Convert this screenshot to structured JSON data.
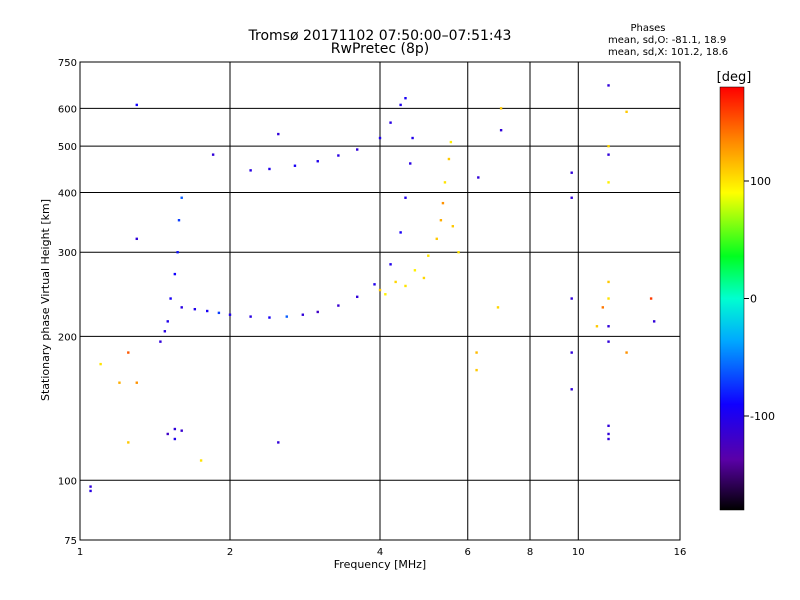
{
  "chart_data": {
    "type": "scatter",
    "title": "Tromsø 20171102 07:50:00–07:51:43",
    "subtitle": "RwPretec (8p)",
    "xlabel": "Frequency [MHz]",
    "ylabel": "Stationary phase Virtual Height [km]",
    "x_scale": "log",
    "y_scale": "log",
    "xlim": [
      1,
      16
    ],
    "ylim": [
      75,
      750
    ],
    "x_ticks": [
      1,
      2,
      4,
      6,
      8,
      10,
      16
    ],
    "y_ticks": [
      75,
      100,
      200,
      300,
      400,
      500,
      600,
      750
    ],
    "grid": true,
    "phase_info": {
      "title": "Phases",
      "o_line": "mean, sd,O: -81.1, 18.9",
      "x_line": "mean, sd,X: 101.2, 18.6"
    },
    "colorbar": {
      "label": "[deg]",
      "range": [
        -180,
        180
      ],
      "ticks": [
        100,
        0,
        -100
      ]
    },
    "series": [
      {
        "mode": "O",
        "mean_phase": -81.1,
        "points": [
          [
            1.05,
            97,
            -110
          ],
          [
            1.05,
            95,
            -105
          ],
          [
            1.5,
            125,
            -120
          ],
          [
            1.55,
            128,
            -110
          ],
          [
            1.55,
            122,
            -100
          ],
          [
            1.6,
            127,
            -115
          ],
          [
            1.45,
            195,
            -110
          ],
          [
            1.48,
            205,
            -105
          ],
          [
            1.5,
            215,
            -100
          ],
          [
            1.52,
            240,
            -95
          ],
          [
            1.55,
            270,
            -90
          ],
          [
            1.57,
            300,
            -85
          ],
          [
            1.58,
            350,
            -70
          ],
          [
            1.6,
            390,
            -60
          ],
          [
            1.6,
            230,
            -105
          ],
          [
            1.7,
            228,
            -100
          ],
          [
            1.8,
            226,
            -95
          ],
          [
            1.9,
            224,
            -70
          ],
          [
            2.0,
            222,
            -100
          ],
          [
            2.2,
            220,
            -105
          ],
          [
            2.4,
            219,
            -95
          ],
          [
            2.6,
            220,
            -60
          ],
          [
            2.8,
            222,
            -110
          ],
          [
            3.0,
            225,
            -120
          ],
          [
            3.3,
            232,
            -115
          ],
          [
            3.6,
            242,
            -110
          ],
          [
            3.9,
            257,
            -100
          ],
          [
            4.2,
            283,
            -100
          ],
          [
            4.4,
            330,
            -95
          ],
          [
            4.5,
            390,
            -100
          ],
          [
            4.6,
            460,
            -105
          ],
          [
            4.65,
            520,
            -100
          ],
          [
            2.2,
            445,
            -105
          ],
          [
            2.4,
            448,
            -100
          ],
          [
            2.7,
            455,
            -95
          ],
          [
            3.0,
            465,
            -100
          ],
          [
            3.3,
            478,
            -105
          ],
          [
            3.6,
            492,
            -110
          ],
          [
            4.0,
            520,
            -100
          ],
          [
            4.2,
            560,
            -105
          ],
          [
            4.4,
            610,
            -100
          ],
          [
            4.5,
            630,
            -95
          ],
          [
            1.3,
            610,
            -90
          ],
          [
            1.85,
            480,
            -110
          ],
          [
            2.5,
            530,
            -110
          ],
          [
            2.5,
            120,
            -110
          ],
          [
            1.3,
            320,
            -110
          ],
          [
            9.7,
            440,
            -110
          ],
          [
            9.7,
            390,
            -110
          ],
          [
            9.7,
            240,
            -110
          ],
          [
            9.7,
            185,
            -110
          ],
          [
            9.7,
            155,
            -110
          ],
          [
            11.5,
            670,
            -110
          ],
          [
            11.5,
            480,
            -110
          ],
          [
            11.5,
            210,
            -110
          ],
          [
            11.5,
            195,
            -110
          ],
          [
            11.5,
            130,
            -110
          ],
          [
            11.5,
            125,
            -110
          ],
          [
            11.5,
            122,
            -110
          ],
          [
            14.2,
            215,
            -110
          ],
          [
            6.3,
            430,
            -110
          ],
          [
            7.0,
            540,
            -110
          ]
        ]
      },
      {
        "mode": "X",
        "mean_phase": 101.2,
        "points": [
          [
            4.0,
            250,
            110
          ],
          [
            4.3,
            260,
            105
          ],
          [
            4.7,
            275,
            95
          ],
          [
            5.0,
            295,
            100
          ],
          [
            5.2,
            320,
            110
          ],
          [
            5.3,
            350,
            120
          ],
          [
            5.35,
            380,
            130
          ],
          [
            5.4,
            420,
            100
          ],
          [
            5.5,
            470,
            110
          ],
          [
            5.55,
            510,
            95
          ],
          [
            5.6,
            340,
            110
          ],
          [
            5.75,
            300,
            100
          ],
          [
            4.1,
            245,
            95
          ],
          [
            4.5,
            255,
            100
          ],
          [
            4.9,
            265,
            105
          ],
          [
            1.2,
            160,
            120
          ],
          [
            1.3,
            160,
            130
          ],
          [
            1.25,
            185,
            150
          ],
          [
            1.75,
            110,
            100
          ],
          [
            6.25,
            185,
            115
          ],
          [
            6.25,
            170,
            110
          ],
          [
            6.9,
            230,
            105
          ],
          [
            7.0,
            600,
            110
          ],
          [
            11.5,
            500,
            105
          ],
          [
            11.5,
            420,
            95
          ],
          [
            11.5,
            260,
            110
          ],
          [
            11.5,
            240,
            100
          ],
          [
            11.2,
            230,
            140
          ],
          [
            10.9,
            210,
            110
          ],
          [
            12.5,
            590,
            110
          ],
          [
            12.5,
            185,
            130
          ],
          [
            14.0,
            240,
            160
          ],
          [
            1.25,
            120,
            110
          ],
          [
            1.1,
            175,
            100
          ]
        ]
      }
    ]
  }
}
